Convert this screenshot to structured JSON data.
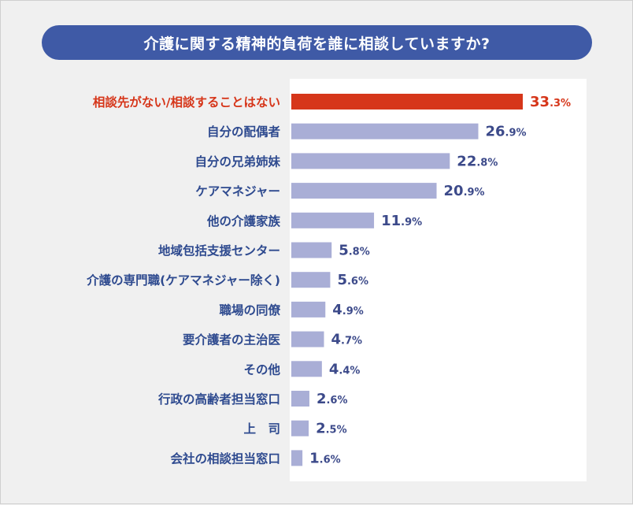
{
  "title": "介護に関する精神的負荷を誰に相談していますか?",
  "colors": {
    "title_bg": "#3f5aa6",
    "label_text": "#2e4a8f",
    "highlight": "#d6361a",
    "bar": "#a9aed6",
    "value_text": "#3c4a8a",
    "plot_bg": "#ffffff",
    "page_bg": "#f0f0f0"
  },
  "chart_data": {
    "type": "bar",
    "orientation": "horizontal",
    "unit": "%",
    "categories": [
      "相談先がない/相談することはない",
      "自分の配偶者",
      "自分の兄弟姉妹",
      "ケアマネジャー",
      "他の介護家族",
      "地域包括支援センター",
      "介護の専門職(ケアマネジャー除く)",
      "職場の同僚",
      "要介護者の主治医",
      "その他",
      "行政の高齢者担当窓口",
      "上　司",
      "会社の相談担当窓口"
    ],
    "values": [
      33.3,
      26.9,
      22.8,
      20.9,
      11.9,
      5.8,
      5.6,
      4.9,
      4.7,
      4.4,
      2.6,
      2.5,
      1.6
    ],
    "value_labels": [
      "33.3%",
      "26.9%",
      "22.8%",
      "20.9%",
      "11.9%",
      "5.8%",
      "5.6%",
      "4.9%",
      "4.7%",
      "4.4%",
      "2.6%",
      "2.5%",
      "1.6%"
    ],
    "highlight_index": 0,
    "xlim": [
      0,
      33.3
    ]
  }
}
